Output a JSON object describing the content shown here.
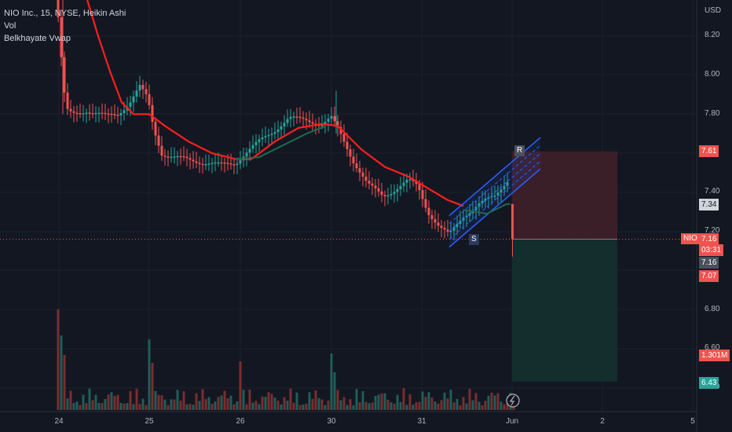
{
  "legend": {
    "title": "NIO Inc., 15, NYSE, Heikin Ashi",
    "vol": "Vol",
    "indicator": "Belkhayate Vwap"
  },
  "axis": {
    "currency": "USD",
    "yticks": [
      "8.20",
      "8.00",
      "7.80",
      "7.40",
      "7.20",
      "6.80",
      "6.60",
      "6.40"
    ],
    "xticks": [
      "24",
      "25",
      "26",
      "30",
      "31",
      "Jun",
      "2",
      "5"
    ]
  },
  "badges": {
    "p761": "7.61",
    "p734": "7.34",
    "nio_tag": "NIO",
    "last": "7.16",
    "countdown": "03:31",
    "p716b": "7.16",
    "p707": "7.07",
    "vol": "1.301M",
    "p643": "6.43"
  },
  "channel_labels": {
    "resistance": "R",
    "support": "S"
  },
  "colors": {
    "background": "#131722",
    "up": "#26a69a",
    "down": "#ef5350",
    "vwap_down": "#ff1e1e",
    "vwap_up": "#1e6b4f",
    "channel": "#2962ff",
    "stop_zone": "#3a1f28",
    "target_zone": "#132e2c"
  },
  "chart_data": {
    "type": "candlestick",
    "symbol": "NIO",
    "interval": "15",
    "ylim": [
      6.37,
      8.4
    ],
    "last_price": 7.16,
    "position": {
      "stop": 7.61,
      "entry": 7.16,
      "target": 6.43
    },
    "x": [
      "24",
      "25",
      "26",
      "30",
      "31",
      "Jun"
    ],
    "close": [
      7.82,
      7.58,
      7.72,
      7.28,
      7.26,
      7.16
    ]
  }
}
